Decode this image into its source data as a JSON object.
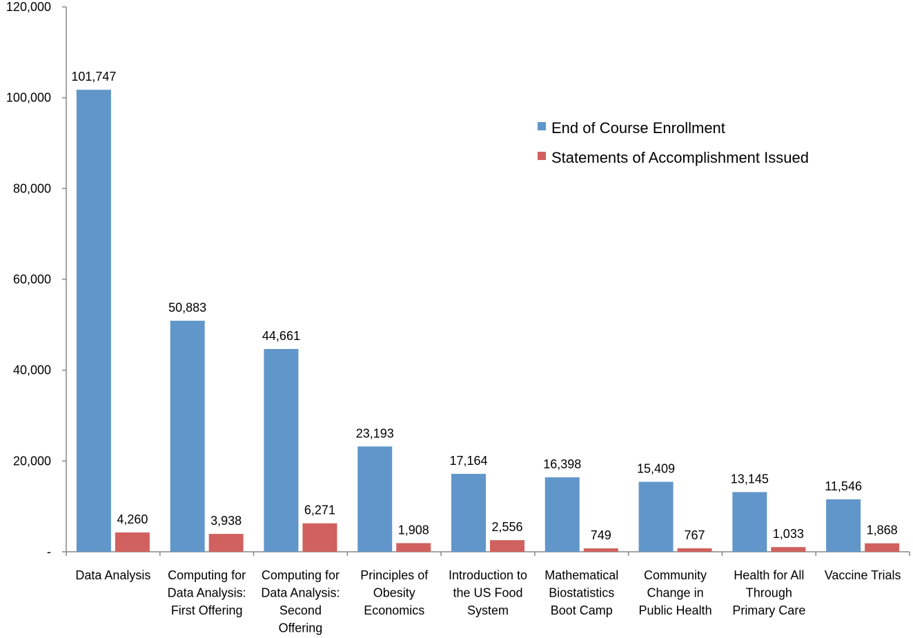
{
  "chart_data": {
    "type": "bar",
    "title": "",
    "xlabel": "",
    "ylabel": "",
    "ylim": [
      0,
      120000
    ],
    "y_ticks": [
      0,
      20000,
      40000,
      60000,
      80000,
      100000,
      120000
    ],
    "y_tick_labels": [
      "-",
      "20,000",
      "40,000",
      "60,000",
      "80,000",
      "100,000",
      "120,000"
    ],
    "grid": false,
    "legend_position": "top-right",
    "categories": [
      [
        "Data Analysis"
      ],
      [
        "Computing for",
        "Data Analysis:",
        "First Offering"
      ],
      [
        "Computing for",
        "Data Analysis:",
        "Second",
        "Offering"
      ],
      [
        "Principles of",
        "Obesity",
        "Economics"
      ],
      [
        "Introduction to",
        "the US Food",
        "System"
      ],
      [
        "Mathematical",
        "Biostatistics",
        "Boot Camp"
      ],
      [
        "Community",
        "Change in",
        "Public Health"
      ],
      [
        "Health for All",
        "Through",
        "Primary Care"
      ],
      [
        "Vaccine Trials"
      ]
    ],
    "series": [
      {
        "name": "End of Course Enrollment",
        "color": "#6196CA",
        "values": [
          101747,
          50883,
          44661,
          23193,
          17164,
          16398,
          15409,
          13145,
          11546
        ],
        "labels": [
          "101,747",
          "50,883",
          "44,661",
          "23,193",
          "17,164",
          "16,398",
          "15,409",
          "13,145",
          "11,546"
        ]
      },
      {
        "name": "Statements of Accomplishment Issued",
        "color": "#D0615E",
        "values": [
          4260,
          3938,
          6271,
          1908,
          2556,
          749,
          767,
          1033,
          1868
        ],
        "labels": [
          "4,260",
          "3,938",
          "6,271",
          "1,908",
          "2,556",
          "749",
          "767",
          "1,033",
          "1,868"
        ]
      }
    ]
  }
}
